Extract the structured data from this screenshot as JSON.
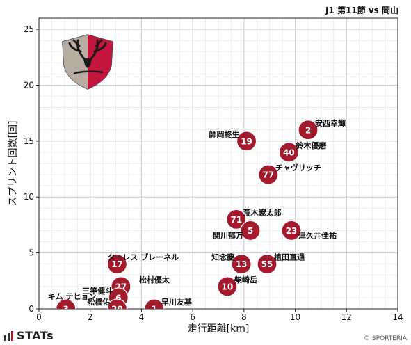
{
  "header": {
    "title": "J1 第11節 vs 岡山"
  },
  "footer": {
    "brand": "STATs",
    "copyright": "© SPORTERIA"
  },
  "colors": {
    "marker": "#a21a2c",
    "grid": "#cccccc",
    "minor_grid": "#e6e6e6"
  },
  "chart_data": {
    "type": "scatter",
    "xlabel": "走行距離[km]",
    "ylabel": "スプリント回数[回]",
    "xlim": [
      0,
      14
    ],
    "ylim": [
      0,
      26
    ],
    "xticks": [
      0,
      2,
      4,
      6,
      8,
      10,
      12,
      14
    ],
    "yticks": [
      0,
      5,
      10,
      15,
      20,
      25
    ],
    "grid": true,
    "points": [
      {
        "number": "2",
        "name": "安西幸輝",
        "x": 10.5,
        "y": 16
      },
      {
        "number": "19",
        "name": "師岡柊生",
        "x": 8.1,
        "y": 15
      },
      {
        "number": "40",
        "name": "鈴木優磨",
        "x": 9.75,
        "y": 14
      },
      {
        "number": "77",
        "name": "チャヴリッチ",
        "x": 8.95,
        "y": 12
      },
      {
        "number": "71",
        "name": "荒木遼太郎",
        "x": 7.7,
        "y": 8
      },
      {
        "number": "5",
        "name": "関川郁万",
        "x": 8.25,
        "y": 7
      },
      {
        "number": "23",
        "name": "津久井佳祐",
        "x": 9.85,
        "y": 7
      },
      {
        "number": "17",
        "name": "ターレス ブレーネル",
        "x": 3.05,
        "y": 4
      },
      {
        "number": "13",
        "name": "知念慶",
        "x": 7.9,
        "y": 4
      },
      {
        "number": "55",
        "name": "植田直通",
        "x": 8.9,
        "y": 4
      },
      {
        "number": "10",
        "name": "柴崎岳",
        "x": 7.35,
        "y": 2
      },
      {
        "number": "27",
        "name": "松村優太",
        "x": 3.2,
        "y": 2
      },
      {
        "number": "6",
        "name": "三竿健斗",
        "x": 3.1,
        "y": 1
      },
      {
        "number": "3",
        "name": "キム テヒョン",
        "x": 1.05,
        "y": 0
      },
      {
        "number": "20",
        "name": "舩橋佑",
        "x": 3.05,
        "y": 0
      },
      {
        "number": "1",
        "name": "早川友基",
        "x": 4.5,
        "y": 0
      }
    ]
  }
}
